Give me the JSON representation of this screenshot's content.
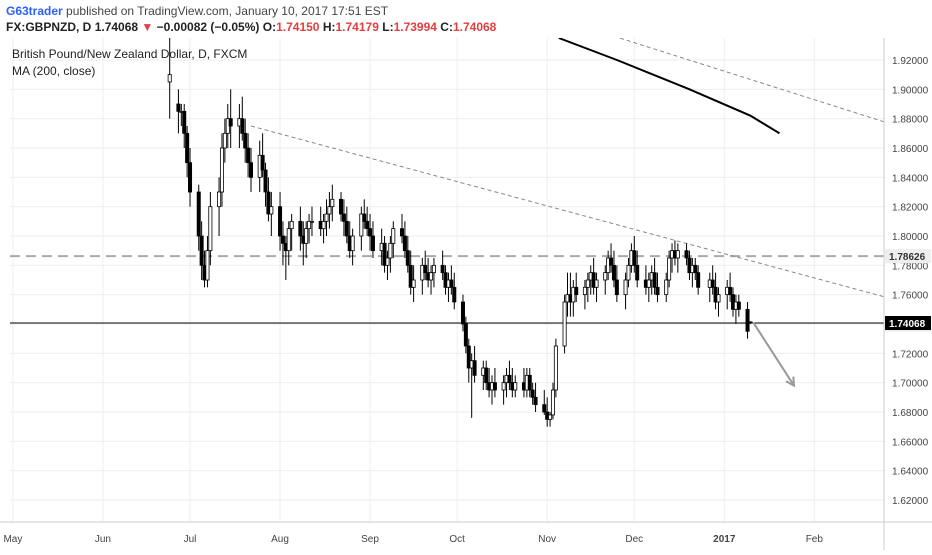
{
  "header": {
    "author": "G63trader",
    "published_text": "published on TradingView.com, January 10, 2017 17:51 EST",
    "symbol": "FX:GBPNZD, D",
    "last": "1.74068",
    "change": "−0.00082 (−0.05%)",
    "open_label": "O:",
    "open": "1.74150",
    "high_label": "H:",
    "high": "1.74179",
    "low_label": "L:",
    "low": "1.73994",
    "close_label": "C:",
    "close": "1.74068"
  },
  "legend": {
    "title": "British Pound/New Zealand Dollar, D, FXCM",
    "indicator": "MA (200, close)"
  },
  "colors": {
    "candle": "#000000",
    "grid": "#eeeeee",
    "trendline": "#888888",
    "level": "#aaaaaa",
    "price_tag_bg": "#000000",
    "price_tag_text": "#ffffff",
    "level_tag_bg": "#eeeeee",
    "arrow": "#999999",
    "ma": "#000000"
  },
  "chart_data": {
    "type": "candlestick",
    "y_ticks": [
      "1.92000",
      "1.90000",
      "1.88000",
      "1.86000",
      "1.84000",
      "1.82000",
      "1.80000",
      "1.78000",
      "1.76000",
      "1.74000",
      "1.72000",
      "1.70000",
      "1.68000",
      "1.66000",
      "1.64000",
      "1.62000"
    ],
    "ylim": [
      1.605,
      1.935
    ],
    "x_labels": [
      "May",
      "Jun",
      "Jul",
      "Aug",
      "Sep",
      "Oct",
      "Nov",
      "Dec",
      "2017",
      "Feb"
    ],
    "x_label_dates": [
      "2016-05-01",
      "2016-06-01",
      "2016-07-01",
      "2016-08-01",
      "2016-09-01",
      "2016-10-01",
      "2016-11-01",
      "2016-12-01",
      "2017-01-01",
      "2017-02-01"
    ],
    "xlim": [
      "2016-04-30",
      "2017-02-25"
    ],
    "price_labels": {
      "last": "1.74068",
      "level": "1.78626",
      "below": "1.74000"
    },
    "level_value": 1.78626,
    "last_value": 1.74068,
    "ma200": [
      [
        "2016-11-05",
        1.935
      ],
      [
        "2016-11-25",
        1.92
      ],
      [
        "2016-12-20",
        1.9
      ],
      [
        "2017-01-10",
        1.882
      ],
      [
        "2017-01-20",
        1.87
      ]
    ],
    "trendline_upper": [
      [
        "2016-11-10",
        1.945
      ],
      [
        "2017-02-28",
        1.876
      ]
    ],
    "trendline_lower": [
      [
        "2016-07-22",
        1.875
      ],
      [
        "2017-02-28",
        1.757
      ]
    ],
    "projection_arrow": [
      [
        "2017-01-11",
        1.741
      ],
      [
        "2017-01-25",
        1.698
      ]
    ],
    "candles": [
      [
        "2016-06-24",
        1.905,
        1.935,
        1.88,
        1.91
      ],
      [
        "2016-06-27",
        1.89,
        1.9,
        1.87,
        1.885
      ],
      [
        "2016-06-28",
        1.885,
        1.89,
        1.875,
        1.885
      ],
      [
        "2016-06-29",
        1.885,
        1.89,
        1.86,
        1.87
      ],
      [
        "2016-06-30",
        1.87,
        1.875,
        1.84,
        1.85
      ],
      [
        "2016-07-01",
        1.85,
        1.86,
        1.82,
        1.83
      ],
      [
        "2016-07-04",
        1.83,
        1.835,
        1.79,
        1.8
      ],
      [
        "2016-07-05",
        1.8,
        1.81,
        1.77,
        1.78
      ],
      [
        "2016-07-06",
        1.78,
        1.79,
        1.765,
        1.77
      ],
      [
        "2016-07-07",
        1.77,
        1.8,
        1.765,
        1.79
      ],
      [
        "2016-07-08",
        1.79,
        1.83,
        1.78,
        1.82
      ],
      [
        "2016-07-11",
        1.82,
        1.84,
        1.8,
        1.83
      ],
      [
        "2016-07-12",
        1.83,
        1.87,
        1.82,
        1.86
      ],
      [
        "2016-07-13",
        1.86,
        1.88,
        1.85,
        1.87
      ],
      [
        "2016-07-14",
        1.87,
        1.89,
        1.86,
        1.88
      ],
      [
        "2016-07-15",
        1.88,
        1.9,
        1.86,
        1.875
      ],
      [
        "2016-07-18",
        1.875,
        1.89,
        1.86,
        1.88
      ],
      [
        "2016-07-19",
        1.88,
        1.895,
        1.865,
        1.87
      ],
      [
        "2016-07-20",
        1.87,
        1.88,
        1.85,
        1.86
      ],
      [
        "2016-07-21",
        1.86,
        1.87,
        1.84,
        1.85
      ],
      [
        "2016-07-22",
        1.85,
        1.86,
        1.83,
        1.84
      ],
      [
        "2016-07-25",
        1.84,
        1.865,
        1.83,
        1.855
      ],
      [
        "2016-07-26",
        1.855,
        1.87,
        1.84,
        1.845
      ],
      [
        "2016-07-27",
        1.845,
        1.85,
        1.82,
        1.83
      ],
      [
        "2016-07-28",
        1.83,
        1.84,
        1.81,
        1.815
      ],
      [
        "2016-07-29",
        1.815,
        1.83,
        1.8,
        1.82
      ],
      [
        "2016-08-01",
        1.82,
        1.83,
        1.79,
        1.8
      ],
      [
        "2016-08-02",
        1.8,
        1.81,
        1.78,
        1.795
      ],
      [
        "2016-08-03",
        1.795,
        1.8,
        1.77,
        1.79
      ],
      [
        "2016-08-04",
        1.79,
        1.81,
        1.78,
        1.805
      ],
      [
        "2016-08-05",
        1.805,
        1.815,
        1.79,
        1.81
      ],
      [
        "2016-08-08",
        1.81,
        1.82,
        1.79,
        1.8
      ],
      [
        "2016-08-09",
        1.8,
        1.81,
        1.78,
        1.795
      ],
      [
        "2016-08-10",
        1.795,
        1.81,
        1.785,
        1.805
      ],
      [
        "2016-08-11",
        1.805,
        1.815,
        1.795,
        1.81
      ],
      [
        "2016-08-12",
        1.81,
        1.82,
        1.8,
        1.81
      ],
      [
        "2016-08-15",
        1.81,
        1.82,
        1.8,
        1.805
      ],
      [
        "2016-08-16",
        1.805,
        1.815,
        1.795,
        1.81
      ],
      [
        "2016-08-17",
        1.81,
        1.825,
        1.8,
        1.815
      ],
      [
        "2016-08-18",
        1.815,
        1.83,
        1.805,
        1.82
      ],
      [
        "2016-08-19",
        1.82,
        1.835,
        1.81,
        1.825
      ],
      [
        "2016-08-22",
        1.825,
        1.83,
        1.81,
        1.815
      ],
      [
        "2016-08-23",
        1.815,
        1.825,
        1.8,
        1.81
      ],
      [
        "2016-08-24",
        1.81,
        1.82,
        1.795,
        1.8
      ],
      [
        "2016-08-25",
        1.8,
        1.81,
        1.785,
        1.79
      ],
      [
        "2016-08-26",
        1.79,
        1.805,
        1.78,
        1.8
      ],
      [
        "2016-08-29",
        1.8,
        1.82,
        1.79,
        1.815
      ],
      [
        "2016-08-30",
        1.815,
        1.825,
        1.805,
        1.81
      ],
      [
        "2016-08-31",
        1.81,
        1.82,
        1.8,
        1.805
      ],
      [
        "2016-09-01",
        1.805,
        1.815,
        1.79,
        1.8
      ],
      [
        "2016-09-02",
        1.8,
        1.81,
        1.785,
        1.79
      ],
      [
        "2016-09-05",
        1.79,
        1.805,
        1.78,
        1.795
      ],
      [
        "2016-09-06",
        1.795,
        1.8,
        1.775,
        1.78
      ],
      [
        "2016-09-07",
        1.78,
        1.79,
        1.77,
        1.785
      ],
      [
        "2016-09-08",
        1.785,
        1.8,
        1.775,
        1.795
      ],
      [
        "2016-09-09",
        1.795,
        1.81,
        1.785,
        1.805
      ],
      [
        "2016-09-12",
        1.805,
        1.815,
        1.795,
        1.8
      ],
      [
        "2016-09-13",
        1.8,
        1.81,
        1.785,
        1.79
      ],
      [
        "2016-09-14",
        1.79,
        1.8,
        1.775,
        1.78
      ],
      [
        "2016-09-15",
        1.78,
        1.79,
        1.76,
        1.765
      ],
      [
        "2016-09-16",
        1.765,
        1.78,
        1.755,
        1.77
      ],
      [
        "2016-09-19",
        1.77,
        1.785,
        1.76,
        1.78
      ],
      [
        "2016-09-20",
        1.78,
        1.79,
        1.77,
        1.775
      ],
      [
        "2016-09-21",
        1.775,
        1.785,
        1.765,
        1.77
      ],
      [
        "2016-09-22",
        1.77,
        1.78,
        1.76,
        1.775
      ],
      [
        "2016-09-23",
        1.775,
        1.785,
        1.765,
        1.78
      ],
      [
        "2016-09-26",
        1.78,
        1.79,
        1.77,
        1.775
      ],
      [
        "2016-09-27",
        1.775,
        1.78,
        1.76,
        1.765
      ],
      [
        "2016-09-28",
        1.765,
        1.775,
        1.755,
        1.77
      ],
      [
        "2016-09-29",
        1.77,
        1.78,
        1.76,
        1.765
      ],
      [
        "2016-09-30",
        1.765,
        1.775,
        1.75,
        1.755
      ],
      [
        "2016-10-03",
        1.755,
        1.76,
        1.735,
        1.74
      ],
      [
        "2016-10-04",
        1.74,
        1.745,
        1.72,
        1.725
      ],
      [
        "2016-10-05",
        1.725,
        1.73,
        1.7,
        1.71
      ],
      [
        "2016-10-06",
        1.71,
        1.72,
        1.676,
        1.715
      ],
      [
        "2016-10-07",
        1.715,
        1.725,
        1.7,
        1.705
      ],
      [
        "2016-10-10",
        1.705,
        1.715,
        1.695,
        1.71
      ],
      [
        "2016-10-11",
        1.71,
        1.715,
        1.695,
        1.7
      ],
      [
        "2016-10-12",
        1.7,
        1.71,
        1.69,
        1.695
      ],
      [
        "2016-10-13",
        1.695,
        1.705,
        1.685,
        1.7
      ],
      [
        "2016-10-14",
        1.7,
        1.71,
        1.69,
        1.695
      ],
      [
        "2016-10-17",
        1.695,
        1.705,
        1.685,
        1.7
      ],
      [
        "2016-10-18",
        1.7,
        1.71,
        1.69,
        1.705
      ],
      [
        "2016-10-19",
        1.705,
        1.715,
        1.695,
        1.7
      ],
      [
        "2016-10-20",
        1.7,
        1.71,
        1.69,
        1.695
      ],
      [
        "2016-10-21",
        1.695,
        1.705,
        1.69,
        1.7
      ],
      [
        "2016-10-24",
        1.7,
        1.71,
        1.69,
        1.695
      ],
      [
        "2016-10-25",
        1.695,
        1.71,
        1.69,
        1.705
      ],
      [
        "2016-10-26",
        1.705,
        1.71,
        1.69,
        1.695
      ],
      [
        "2016-10-27",
        1.695,
        1.7,
        1.685,
        1.69
      ],
      [
        "2016-10-28",
        1.69,
        1.7,
        1.68,
        1.685
      ],
      [
        "2016-10-31",
        1.685,
        1.695,
        1.678,
        1.68
      ],
      [
        "2016-11-01",
        1.68,
        1.69,
        1.67,
        1.675
      ],
      [
        "2016-11-02",
        1.675,
        1.68,
        1.67,
        1.678
      ],
      [
        "2016-11-03",
        1.678,
        1.7,
        1.675,
        1.695
      ],
      [
        "2016-11-04",
        1.695,
        1.73,
        1.69,
        1.725
      ],
      [
        "2016-11-07",
        1.725,
        1.76,
        1.72,
        1.755
      ],
      [
        "2016-11-08",
        1.755,
        1.775,
        1.745,
        1.76
      ],
      [
        "2016-11-09",
        1.76,
        1.775,
        1.745,
        1.755
      ],
      [
        "2016-11-10",
        1.755,
        1.77,
        1.745,
        1.765
      ],
      [
        "2016-11-11",
        1.765,
        1.775,
        1.755,
        1.76
      ],
      [
        "2016-11-14",
        1.76,
        1.77,
        1.75,
        1.765
      ],
      [
        "2016-11-15",
        1.765,
        1.775,
        1.755,
        1.77
      ],
      [
        "2016-11-16",
        1.77,
        1.78,
        1.76,
        1.775
      ],
      [
        "2016-11-17",
        1.775,
        1.785,
        1.76,
        1.765
      ],
      [
        "2016-11-18",
        1.765,
        1.775,
        1.755,
        1.77
      ],
      [
        "2016-11-21",
        1.77,
        1.78,
        1.76,
        1.775
      ],
      [
        "2016-11-22",
        1.775,
        1.79,
        1.77,
        1.785
      ],
      [
        "2016-11-23",
        1.785,
        1.795,
        1.775,
        1.78
      ],
      [
        "2016-11-24",
        1.78,
        1.79,
        1.765,
        1.77
      ],
      [
        "2016-11-25",
        1.77,
        1.78,
        1.755,
        1.76
      ],
      [
        "2016-11-28",
        1.76,
        1.775,
        1.75,
        1.77
      ],
      [
        "2016-11-29",
        1.77,
        1.785,
        1.765,
        1.78
      ],
      [
        "2016-11-30",
        1.78,
        1.795,
        1.775,
        1.79
      ],
      [
        "2016-12-01",
        1.79,
        1.8,
        1.775,
        1.78
      ],
      [
        "2016-12-02",
        1.78,
        1.79,
        1.765,
        1.77
      ],
      [
        "2016-12-05",
        1.77,
        1.78,
        1.76,
        1.765
      ],
      [
        "2016-12-06",
        1.765,
        1.775,
        1.755,
        1.77
      ],
      [
        "2016-12-07",
        1.77,
        1.78,
        1.76,
        1.775
      ],
      [
        "2016-12-08",
        1.775,
        1.785,
        1.76,
        1.765
      ],
      [
        "2016-12-09",
        1.765,
        1.775,
        1.755,
        1.76
      ],
      [
        "2016-12-12",
        1.76,
        1.775,
        1.755,
        1.77
      ],
      [
        "2016-12-13",
        1.77,
        1.79,
        1.765,
        1.785
      ],
      [
        "2016-12-14",
        1.785,
        1.795,
        1.775,
        1.79
      ],
      [
        "2016-12-15",
        1.79,
        1.797,
        1.78,
        1.785
      ],
      [
        "2016-12-16",
        1.785,
        1.795,
        1.775,
        1.79
      ],
      [
        "2016-12-19",
        1.79,
        1.795,
        1.78,
        1.785
      ],
      [
        "2016-12-20",
        1.785,
        1.79,
        1.77,
        1.775
      ],
      [
        "2016-12-21",
        1.775,
        1.785,
        1.765,
        1.78
      ],
      [
        "2016-12-22",
        1.78,
        1.785,
        1.77,
        1.775
      ],
      [
        "2016-12-23",
        1.775,
        1.78,
        1.76,
        1.765
      ],
      [
        "2016-12-27",
        1.765,
        1.775,
        1.755,
        1.77
      ],
      [
        "2016-12-28",
        1.77,
        1.78,
        1.76,
        1.765
      ],
      [
        "2016-12-29",
        1.765,
        1.775,
        1.75,
        1.755
      ],
      [
        "2016-12-30",
        1.755,
        1.765,
        1.745,
        1.76
      ],
      [
        "2017-01-02",
        1.76,
        1.77,
        1.75,
        1.765
      ],
      [
        "2017-01-03",
        1.765,
        1.775,
        1.755,
        1.76
      ],
      [
        "2017-01-04",
        1.76,
        1.765,
        1.745,
        1.75
      ],
      [
        "2017-01-05",
        1.75,
        1.76,
        1.74,
        1.755
      ],
      [
        "2017-01-06",
        1.755,
        1.76,
        1.745,
        1.75
      ],
      [
        "2017-01-09",
        1.75,
        1.755,
        1.73,
        1.735
      ],
      [
        "2017-01-10",
        1.7415,
        1.74179,
        1.73994,
        1.74068
      ]
    ]
  }
}
